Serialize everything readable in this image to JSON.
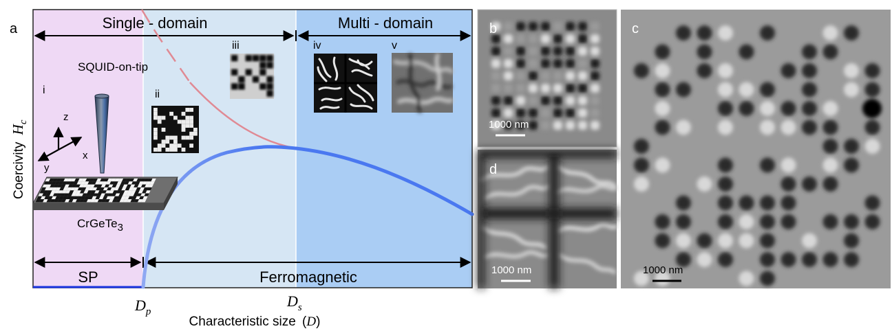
{
  "panels": {
    "a": {
      "label": "a",
      "regions": {
        "single_domain": "Single - domain",
        "multi_domain": "Multi - domain",
        "superparamagnetic": "SP",
        "ferromagnetic": "Ferromagnetic"
      },
      "insets": [
        "i",
        "ii",
        "iii",
        "iv",
        "v"
      ],
      "setup": {
        "tip_label": "SQUID-on-tip",
        "sample_label": "CrGeTe",
        "sample_subscript": "3",
        "axes": [
          "z",
          "x",
          "y"
        ]
      },
      "y_axis": {
        "label": "Coercivity",
        "symbol": "H",
        "subscript": "c"
      },
      "x_axis": {
        "label": "Characteristic size",
        "open": "(",
        "symbol": "D",
        "close": ")"
      },
      "marks": [
        {
          "symbol": "D",
          "subscript": "p"
        },
        {
          "symbol": "D",
          "subscript": "s"
        }
      ],
      "colors": {
        "single_domain_sp_bg": "#efd9f5",
        "single_domain_fm_bg": "#d6e6f4",
        "multi_domain_bg": "#aacdf4",
        "coercivity_curve": "#4a78f0",
        "sp_line": "#1a35e0",
        "upper_curve": "#e08a94"
      }
    },
    "b": {
      "label": "b",
      "scale_bar": "1000 nm"
    },
    "c": {
      "label": "c",
      "scale_bar": "1000 nm"
    },
    "d": {
      "label": "d",
      "scale_bar": "1000 nm"
    }
  }
}
